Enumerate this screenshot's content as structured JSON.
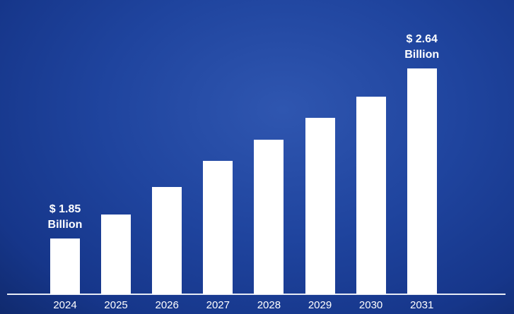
{
  "chart_data": {
    "type": "bar",
    "categories": [
      "2024",
      "2025",
      "2026",
      "2027",
      "2028",
      "2029",
      "2030",
      "2031"
    ],
    "values": [
      1.85,
      1.96,
      2.09,
      2.21,
      2.31,
      2.41,
      2.51,
      2.64
    ],
    "value_labels": [
      "$ 1.85 Billion",
      null,
      null,
      null,
      null,
      null,
      null,
      "$ 2.64 Billion"
    ],
    "color": "#ffffff",
    "ylim": [
      1.59,
      2.7
    ]
  }
}
